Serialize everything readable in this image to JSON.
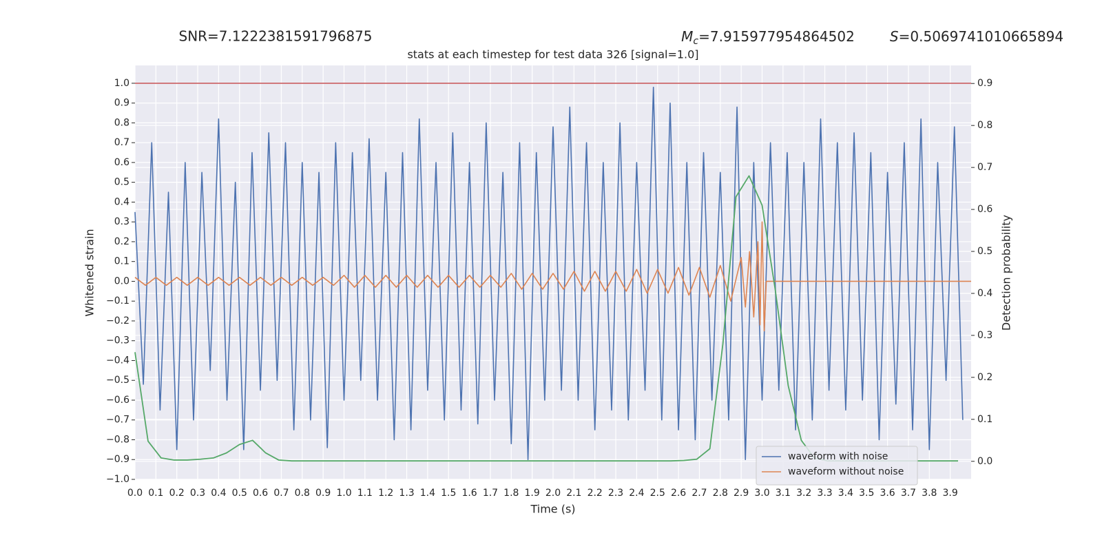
{
  "chart_data": {
    "type": "line",
    "annotations": [
      {
        "text": "SNR=7.1222381591796875"
      },
      {
        "symbol": "M",
        "subscript": "c",
        "text": "=7.915977954864502"
      },
      {
        "symbol": "S",
        "text": "=0.5069741010665894"
      }
    ],
    "title": "stats at each timestep for test data 326 [signal=1.0]",
    "xlabel": "Time (s)",
    "ylabel": "Whitened strain",
    "y2label": "Detection probability",
    "xlim": [
      0,
      4.0
    ],
    "ylim": [
      -1.0,
      1.09
    ],
    "y2lim": [
      -0.043,
      0.943
    ],
    "xticks": [
      {
        "value": 0,
        "label": "0.0"
      },
      0.1,
      0.2,
      0.3,
      0.4,
      0.5,
      0.6,
      0.7,
      0.8,
      0.9,
      {
        "value": 1,
        "label": "1.0"
      },
      1.1,
      1.2,
      1.3,
      1.4,
      1.5,
      1.6,
      1.7,
      1.8,
      1.9,
      {
        "value": 2,
        "label": "2.0"
      },
      2.1,
      2.2,
      2.3,
      2.4,
      2.5,
      2.6,
      2.7,
      2.8,
      2.9,
      {
        "value": 3,
        "label": "3.0"
      },
      3.1,
      3.2,
      3.3,
      3.4,
      3.5,
      3.6,
      3.7,
      3.8,
      3.9
    ],
    "yticks": [
      {
        "value": -1,
        "label": "−1.0"
      },
      {
        "value": -0.9,
        "label": "−0.9"
      },
      {
        "value": -0.8,
        "label": "−0.8"
      },
      {
        "value": -0.7,
        "label": "−0.7"
      },
      {
        "value": -0.6,
        "label": "−0.6"
      },
      {
        "value": -0.5,
        "label": "−0.5"
      },
      {
        "value": -0.4,
        "label": "−0.4"
      },
      {
        "value": -0.3,
        "label": "−0.3"
      },
      {
        "value": -0.2,
        "label": "−0.2"
      },
      {
        "value": -0.1,
        "label": "−0.1"
      },
      {
        "value": 0,
        "label": "0.0"
      },
      0.1,
      0.2,
      0.3,
      0.4,
      0.5,
      0.6,
      0.7,
      0.8,
      0.9,
      {
        "value": 1,
        "label": "1.0"
      }
    ],
    "y2ticks": [
      {
        "value": 0,
        "label": "0.0"
      },
      0.1,
      0.2,
      0.3,
      0.4,
      0.5,
      0.6,
      0.7,
      0.8,
      0.9
    ],
    "grid": true,
    "legend": "lower right",
    "hlines": [
      {
        "y": 1.0,
        "color": "#c44e52"
      }
    ],
    "series": [
      {
        "name": "waveform with noise",
        "color": "#4c72b0",
        "x": [
          0,
          0.04,
          0.08,
          0.12,
          0.16,
          0.2,
          0.24,
          0.28,
          0.32,
          0.36,
          0.4,
          0.44,
          0.48,
          0.52,
          0.56,
          0.6,
          0.64,
          0.68,
          0.72,
          0.76,
          0.8,
          0.84,
          0.88,
          0.92,
          0.96,
          1.0,
          1.04,
          1.08,
          1.12,
          1.16,
          1.2,
          1.24,
          1.28,
          1.32,
          1.36,
          1.4,
          1.44,
          1.48,
          1.52,
          1.56,
          1.6,
          1.64,
          1.68,
          1.72,
          1.76,
          1.8,
          1.84,
          1.88,
          1.92,
          1.96,
          2.0,
          2.04,
          2.08,
          2.12,
          2.16,
          2.2,
          2.24,
          2.28,
          2.32,
          2.36,
          2.4,
          2.44,
          2.48,
          2.52,
          2.56,
          2.6,
          2.64,
          2.68,
          2.72,
          2.76,
          2.8,
          2.84,
          2.88,
          2.92,
          2.96,
          3.0,
          3.04,
          3.08,
          3.12,
          3.16,
          3.2,
          3.24,
          3.28,
          3.32,
          3.36,
          3.4,
          3.44,
          3.48,
          3.52,
          3.56,
          3.6,
          3.64,
          3.68,
          3.72,
          3.76,
          3.8,
          3.84,
          3.88,
          3.92,
          3.96
        ],
        "values": [
          0.35,
          -0.52,
          0.7,
          -0.65,
          0.45,
          -0.85,
          0.6,
          -0.7,
          0.55,
          -0.45,
          0.82,
          -0.6,
          0.5,
          -0.85,
          0.65,
          -0.55,
          0.75,
          -0.5,
          0.7,
          -0.75,
          0.6,
          -0.7,
          0.55,
          -0.84,
          0.7,
          -0.6,
          0.65,
          -0.5,
          0.72,
          -0.6,
          0.55,
          -0.8,
          0.65,
          -0.75,
          0.82,
          -0.55,
          0.6,
          -0.7,
          0.75,
          -0.65,
          0.6,
          -0.72,
          0.8,
          -0.6,
          0.55,
          -0.82,
          0.7,
          -0.9,
          0.65,
          -0.6,
          0.78,
          -0.55,
          0.88,
          -0.6,
          0.7,
          -0.75,
          0.6,
          -0.65,
          0.8,
          -0.7,
          0.6,
          -0.55,
          0.98,
          -0.7,
          0.9,
          -0.75,
          0.6,
          -0.8,
          0.65,
          -0.6,
          0.55,
          -0.7,
          0.88,
          -0.9,
          0.6,
          -0.6,
          0.7,
          -0.55,
          0.65,
          -0.75,
          0.6,
          -0.7,
          0.82,
          -0.55,
          0.7,
          -0.65,
          0.75,
          -0.6,
          0.65,
          -0.8,
          0.55,
          -0.62,
          0.7,
          -0.75,
          0.82,
          -0.85,
          0.6,
          -0.5,
          0.78,
          -0.7
        ]
      },
      {
        "name": "waveform without noise",
        "color": "#dd8452",
        "x": [
          0,
          0.05,
          0.1,
          0.15,
          0.2,
          0.25,
          0.3,
          0.35,
          0.4,
          0.45,
          0.5,
          0.55,
          0.6,
          0.65,
          0.7,
          0.75,
          0.8,
          0.85,
          0.9,
          0.95,
          1.0,
          1.05,
          1.1,
          1.15,
          1.2,
          1.25,
          1.3,
          1.35,
          1.4,
          1.45,
          1.5,
          1.55,
          1.6,
          1.65,
          1.7,
          1.75,
          1.8,
          1.85,
          1.9,
          1.95,
          2.0,
          2.05,
          2.1,
          2.15,
          2.2,
          2.25,
          2.3,
          2.35,
          2.4,
          2.45,
          2.5,
          2.55,
          2.6,
          2.65,
          2.7,
          2.75,
          2.8,
          2.85,
          2.9,
          2.92,
          2.94,
          2.96,
          2.98,
          2.99,
          3.0,
          3.01,
          3.02,
          4.0
        ],
        "values": [
          0.02,
          -0.02,
          0.02,
          -0.02,
          0.02,
          -0.02,
          0.02,
          -0.02,
          0.02,
          -0.02,
          0.02,
          -0.02,
          0.02,
          -0.02,
          0.02,
          -0.02,
          0.02,
          -0.02,
          0.02,
          -0.02,
          0.03,
          -0.03,
          0.03,
          -0.03,
          0.03,
          -0.03,
          0.03,
          -0.03,
          0.03,
          -0.03,
          0.03,
          -0.03,
          0.03,
          -0.03,
          0.03,
          -0.03,
          0.04,
          -0.04,
          0.04,
          -0.04,
          0.04,
          -0.04,
          0.05,
          -0.05,
          0.05,
          -0.05,
          0.05,
          -0.05,
          0.06,
          -0.06,
          0.06,
          -0.06,
          0.07,
          -0.07,
          0.07,
          -0.08,
          0.08,
          -0.1,
          0.12,
          -0.13,
          0.15,
          -0.18,
          0.2,
          -0.22,
          0.3,
          -0.25,
          0,
          0
        ]
      },
      {
        "color": "#55a868",
        "axis": "y2",
        "x": [
          0,
          0.0625,
          0.125,
          0.1875,
          0.25,
          0.3125,
          0.375,
          0.4375,
          0.5,
          0.5625,
          0.625,
          0.6875,
          0.75,
          0.8125,
          0.875,
          0.9375,
          1.0,
          1.0625,
          1.125,
          1.1875,
          1.25,
          1.3125,
          1.375,
          1.4375,
          1.5,
          1.5625,
          1.625,
          1.6875,
          1.75,
          1.8125,
          1.875,
          1.9375,
          2.0,
          2.0625,
          2.125,
          2.1875,
          2.25,
          2.3125,
          2.375,
          2.4375,
          2.5,
          2.5625,
          2.625,
          2.6875,
          2.75,
          2.8125,
          2.875,
          2.9375,
          3.0,
          3.0625,
          3.125,
          3.1875,
          3.25,
          3.3125,
          3.375,
          3.4375,
          3.5,
          3.5625,
          3.625,
          3.6875,
          3.75,
          3.8125,
          3.875,
          3.9375
        ],
        "values": [
          0.26,
          0.048,
          0.008,
          0.003,
          0.003,
          0.005,
          0.008,
          0.02,
          0.04,
          0.05,
          0.02,
          0.003,
          0.001,
          0.001,
          0.001,
          0.001,
          0.001,
          0.001,
          0.001,
          0.001,
          0.001,
          0.001,
          0.001,
          0.001,
          0.001,
          0.001,
          0.001,
          0.001,
          0.001,
          0.001,
          0.001,
          0.001,
          0.001,
          0.001,
          0.001,
          0.001,
          0.001,
          0.001,
          0.001,
          0.001,
          0.001,
          0.001,
          0.002,
          0.005,
          0.03,
          0.28,
          0.63,
          0.68,
          0.61,
          0.41,
          0.18,
          0.05,
          0.008,
          0.001,
          0.001,
          0.001,
          0.001,
          0.001,
          0.001,
          0.001,
          0.001,
          0.001,
          0.001,
          0.001
        ]
      }
    ]
  }
}
